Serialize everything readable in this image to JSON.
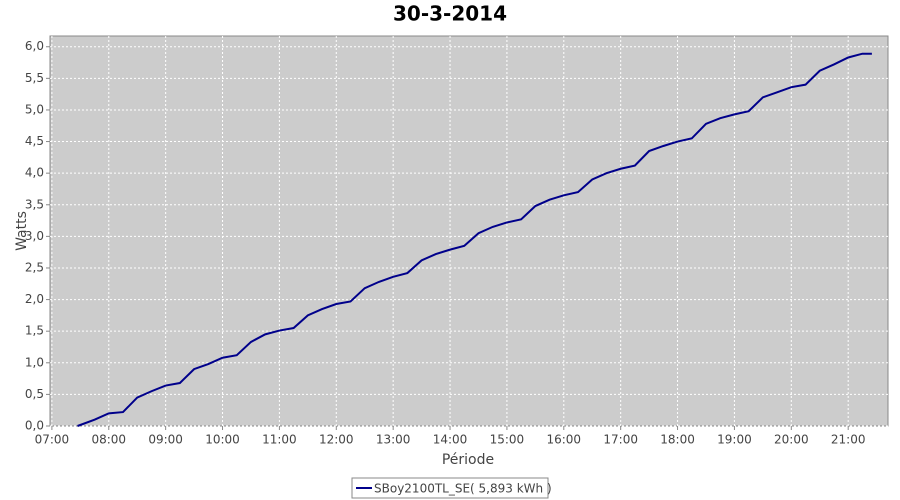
{
  "chart_data": {
    "type": "line",
    "title": "30-3-2014",
    "x_label": "Période",
    "y_label": "Watts",
    "x": [
      "07:27",
      "07:45",
      "08:00",
      "08:15",
      "08:30",
      "08:45",
      "09:00",
      "09:15",
      "09:30",
      "09:45",
      "10:00",
      "10:15",
      "10:30",
      "10:45",
      "11:00",
      "11:15",
      "11:30",
      "11:45",
      "12:00",
      "12:15",
      "12:30",
      "12:45",
      "13:00",
      "13:15",
      "13:30",
      "13:45",
      "14:00",
      "14:15",
      "14:30",
      "14:45",
      "15:00",
      "15:15",
      "15:30",
      "15:45",
      "16:00",
      "16:15",
      "16:30",
      "16:45",
      "17:00",
      "17:15",
      "17:30",
      "17:45",
      "18:00",
      "18:15",
      "18:30",
      "18:45",
      "19:00",
      "19:15",
      "19:30",
      "19:45",
      "20:00",
      "20:15",
      "20:30",
      "20:45",
      "21:00",
      "21:15",
      "21:25"
    ],
    "series": [
      {
        "name": "SBoy2100TL_SE( 5,893 kWh )",
        "color": "#00008b",
        "values": [
          0.0,
          0.1,
          0.2,
          0.22,
          0.45,
          0.55,
          0.64,
          0.68,
          0.9,
          0.98,
          1.08,
          1.12,
          1.33,
          1.45,
          1.51,
          1.55,
          1.75,
          1.85,
          1.93,
          1.97,
          2.18,
          2.28,
          2.36,
          2.42,
          2.62,
          2.72,
          2.79,
          2.85,
          3.05,
          3.15,
          3.22,
          3.27,
          3.48,
          3.58,
          3.65,
          3.7,
          3.9,
          4.0,
          4.07,
          4.12,
          4.35,
          4.43,
          4.5,
          4.55,
          4.78,
          4.87,
          4.93,
          4.98,
          5.2,
          5.28,
          5.36,
          5.4,
          5.62,
          5.72,
          5.83,
          5.89,
          5.89
        ]
      }
    ],
    "xlim": [
      "06:58",
      "21:42"
    ],
    "xticks": [
      "07:00",
      "08:00",
      "09:00",
      "10:00",
      "11:00",
      "12:00",
      "13:00",
      "14:00",
      "15:00",
      "16:00",
      "17:00",
      "18:00",
      "19:00",
      "20:00",
      "21:00"
    ],
    "ylim": [
      0,
      6.17
    ],
    "yticks": [
      {
        "value": 0,
        "label": "0,0"
      },
      {
        "value": 0.5,
        "label": "0,5"
      },
      {
        "value": 1,
        "label": "1,0"
      },
      {
        "value": 1.5,
        "label": "1,5"
      },
      {
        "value": 2,
        "label": "2,0"
      },
      {
        "value": 2.5,
        "label": "2,5"
      },
      {
        "value": 3,
        "label": "3,0"
      },
      {
        "value": 3.5,
        "label": "3,5"
      },
      {
        "value": 4,
        "label": "4,0"
      },
      {
        "value": 4.5,
        "label": "4,5"
      },
      {
        "value": 5,
        "label": "5,0"
      },
      {
        "value": 5.5,
        "label": "5,5"
      },
      {
        "value": 6,
        "label": "6,0"
      }
    ],
    "grid": true
  }
}
